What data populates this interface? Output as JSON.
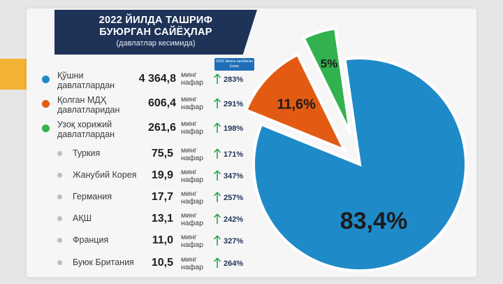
{
  "title_lines": [
    "2022 ЙИЛДА ТАШРИФ",
    "БУЮРГАН САЙЁҲЛАР"
  ],
  "subtitle": "(давлатлар кесимида)",
  "header_badge": "2021 йилга нисбатан ўсиш",
  "unit_line1": "минг",
  "unit_line2": "нафар",
  "colors": {
    "blue": "#1f8ac8",
    "orange": "#e35a12",
    "green": "#32b14f",
    "gray": "#bdbdbd",
    "title_bg": "#1e3357",
    "arrow": "#2aa24a"
  },
  "main_rows": [
    {
      "label1": "Қўшни",
      "label2": "давлатлардан",
      "value": "4 364,8",
      "growth": "283%",
      "color": "#1f8ac8"
    },
    {
      "label1": "Қолган МДҲ",
      "label2": "давлатларидан",
      "value": "606,4",
      "growth": "291%",
      "color": "#e35a12"
    },
    {
      "label1": "Узоқ хорижий",
      "label2": "давлатлардан",
      "value": "261,6",
      "growth": "198%",
      "color": "#32b14f"
    }
  ],
  "sub_rows": [
    {
      "label": "Туркия",
      "value": "75,5",
      "growth": "171%"
    },
    {
      "label": "Жанубий Корея",
      "value": "19,9",
      "growth": "347%"
    },
    {
      "label": "Германия",
      "value": "17,7",
      "growth": "257%"
    },
    {
      "label": "АҚШ",
      "value": "13,1",
      "growth": "242%"
    },
    {
      "label": "Франция",
      "value": "11,0",
      "growth": "327%"
    },
    {
      "label": "Буюк Британия",
      "value": "10,5",
      "growth": "264%"
    }
  ],
  "chart_data": {
    "type": "pie",
    "labels": [
      "83,4%",
      "11,6%",
      "5%"
    ],
    "values": [
      83.4,
      11.6,
      5.0
    ],
    "colors": [
      "#1f8ac8",
      "#e35a12",
      "#32b14f"
    ],
    "exploded": [
      false,
      true,
      true
    ]
  }
}
